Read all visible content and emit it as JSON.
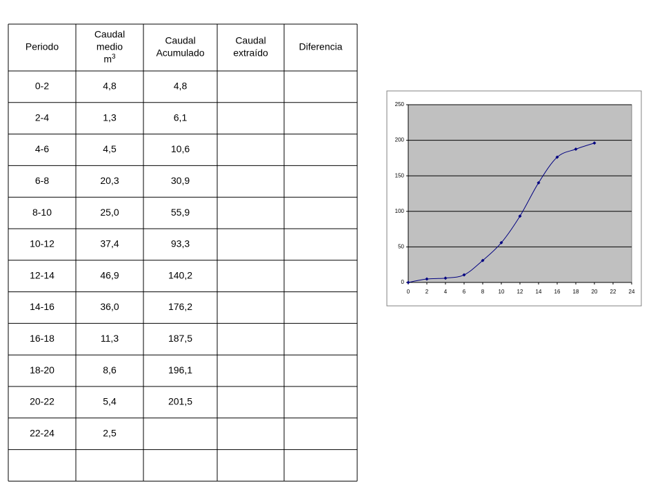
{
  "table": {
    "header": [
      [
        "Periodo"
      ],
      [
        "Caudal",
        "medio",
        "m"
      ],
      [
        "Caudal",
        "Acumulado"
      ],
      [
        "Caudal",
        "extraído"
      ],
      [
        "Diferencia"
      ]
    ],
    "header_superscript": "3",
    "rows": [
      [
        "0-2",
        "4,8",
        "4,8",
        null,
        null
      ],
      [
        "2-4",
        "1,3",
        "6,1",
        null,
        null
      ],
      [
        "4-6",
        "4,5",
        "10,6",
        null,
        null
      ],
      [
        "6-8",
        "20,3",
        "30,9",
        null,
        null
      ],
      [
        "8-10",
        "25,0",
        "55,9",
        null,
        null
      ],
      [
        "10-12",
        "37,4",
        "93,3",
        null,
        null
      ],
      [
        "12-14",
        "46,9",
        "140,2",
        null,
        null
      ],
      [
        "14-16",
        "36,0",
        "176,2",
        null,
        null
      ],
      [
        "16-18",
        "11,3",
        "187,5",
        null,
        null
      ],
      [
        "18-20",
        "8,6",
        "196,1",
        null,
        null
      ],
      [
        "20-22",
        "5,4",
        "201,5",
        null,
        null
      ],
      [
        "22-24",
        "2,5",
        null,
        null,
        null
      ],
      [
        null,
        null,
        null,
        null,
        null
      ]
    ]
  },
  "chart_data": {
    "type": "line",
    "x": [
      0,
      2,
      4,
      6,
      8,
      10,
      12,
      14,
      16,
      18,
      20
    ],
    "series": [
      {
        "color": "#000080",
        "values": [
          0,
          4.8,
          6.1,
          10.6,
          30.9,
          55.9,
          93.3,
          140.2,
          176.2,
          187.5,
          196.1
        ]
      }
    ],
    "xlim": [
      0,
      24
    ],
    "xticks": [
      0,
      2,
      4,
      6,
      8,
      10,
      12,
      14,
      16,
      18,
      20,
      22,
      24
    ],
    "ylim": [
      0,
      250
    ],
    "yticks": [
      0,
      50,
      100,
      150,
      200,
      250
    ],
    "grid": true,
    "plot_background": "#c0c0c0"
  }
}
